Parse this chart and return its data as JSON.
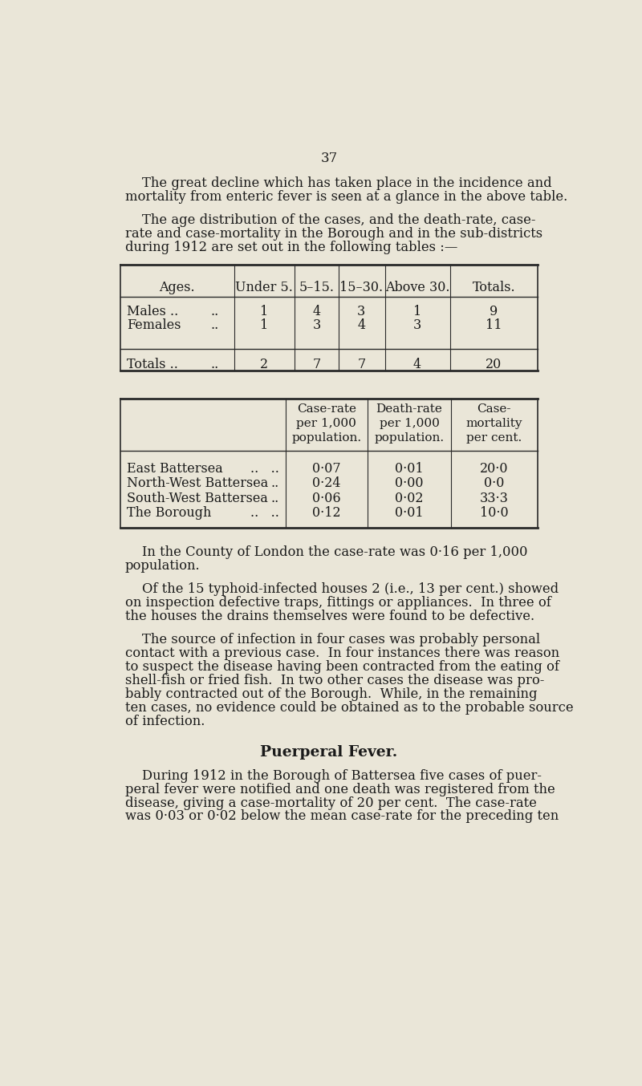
{
  "bg_color": "#eae6d8",
  "text_color": "#1a1a1a",
  "page_number": "37",
  "para1_indent": "    The great decline which has taken place in the incidence and",
  "para1_line2": "mortality from enteric fever is seen at a glance in the above table.",
  "para2_indent": "    The age distribution of the cases, and the death-rate, case-",
  "para2_line2": "rate and case-mortality in the Borough and in the sub-districts",
  "para2_line3": "during 1912 are set out in the following tables :—",
  "t1_headers": [
    "Ages.",
    "Under 5.",
    "5–15.",
    "15–30.",
    "Above 30.",
    "Totals."
  ],
  "t1_males": [
    "Males ..",
    "..",
    "1",
    "4",
    "3",
    "1",
    "9"
  ],
  "t1_females": [
    "Females",
    "..",
    "1",
    "3",
    "4",
    "3",
    "11"
  ],
  "t1_totals": [
    "Totals ..",
    "..",
    "2",
    "7",
    "7",
    "4",
    "20"
  ],
  "t2_h1": "Case-rate\nper 1,000\npopulation.",
  "t2_h2": "Death-rate\nper 1,000\npopulation.",
  "t2_h3": "Case-\nmortality\nper cent.",
  "t2_rows": [
    [
      "East Battersea",
      "..",
      "..",
      "0·07",
      "0·01",
      "20·0"
    ],
    [
      "North-West Battersea",
      "..",
      "",
      "0·24",
      "0·00",
      "0·0"
    ],
    [
      "South-West Battersea",
      "..",
      "",
      "0·06",
      "0·02",
      "33·3"
    ],
    [
      "The Borough",
      "..",
      "..",
      "0·12",
      "0·01",
      "10·0"
    ]
  ],
  "para3_indent": "    In the County of London the case-rate was 0·16 per 1,000",
  "para3_line2": "population.",
  "para4_indent": "    Of the 15 typhoid-infected houses 2 (i.e., 13 per cent.) showed",
  "para4_line2": "on inspection defective traps, fittings or appliances.  In three of",
  "para4_line3": "the houses the drains themselves were found to be defective.",
  "para5_indent": "    The source of infection in four cases was probably personal",
  "para5_line2": "contact with a previous case.  In four instances there was reason",
  "para5_line3": "to suspect the disease having been contracted from the eating of",
  "para5_line4": "shell-fish or fried fish.  In two other cases the disease was pro-",
  "para5_line5": "bably contracted out of the Borough.  While, in the remaining",
  "para5_line6": "ten cases, no evidence could be obtained as to the probable source",
  "para5_line7": "of infection.",
  "section_header": "Puerperal Fever.",
  "para6_indent": "    During 1912 in the Borough of Battersea five cases of puer-",
  "para6_line2": "peral fever were notified and one death was registered from the",
  "para6_line3": "disease, giving a case-mortality of 20 per cent.  The case-rate",
  "para6_line4": "was 0·03 or 0·02 below the mean case-rate for the preceding ten"
}
